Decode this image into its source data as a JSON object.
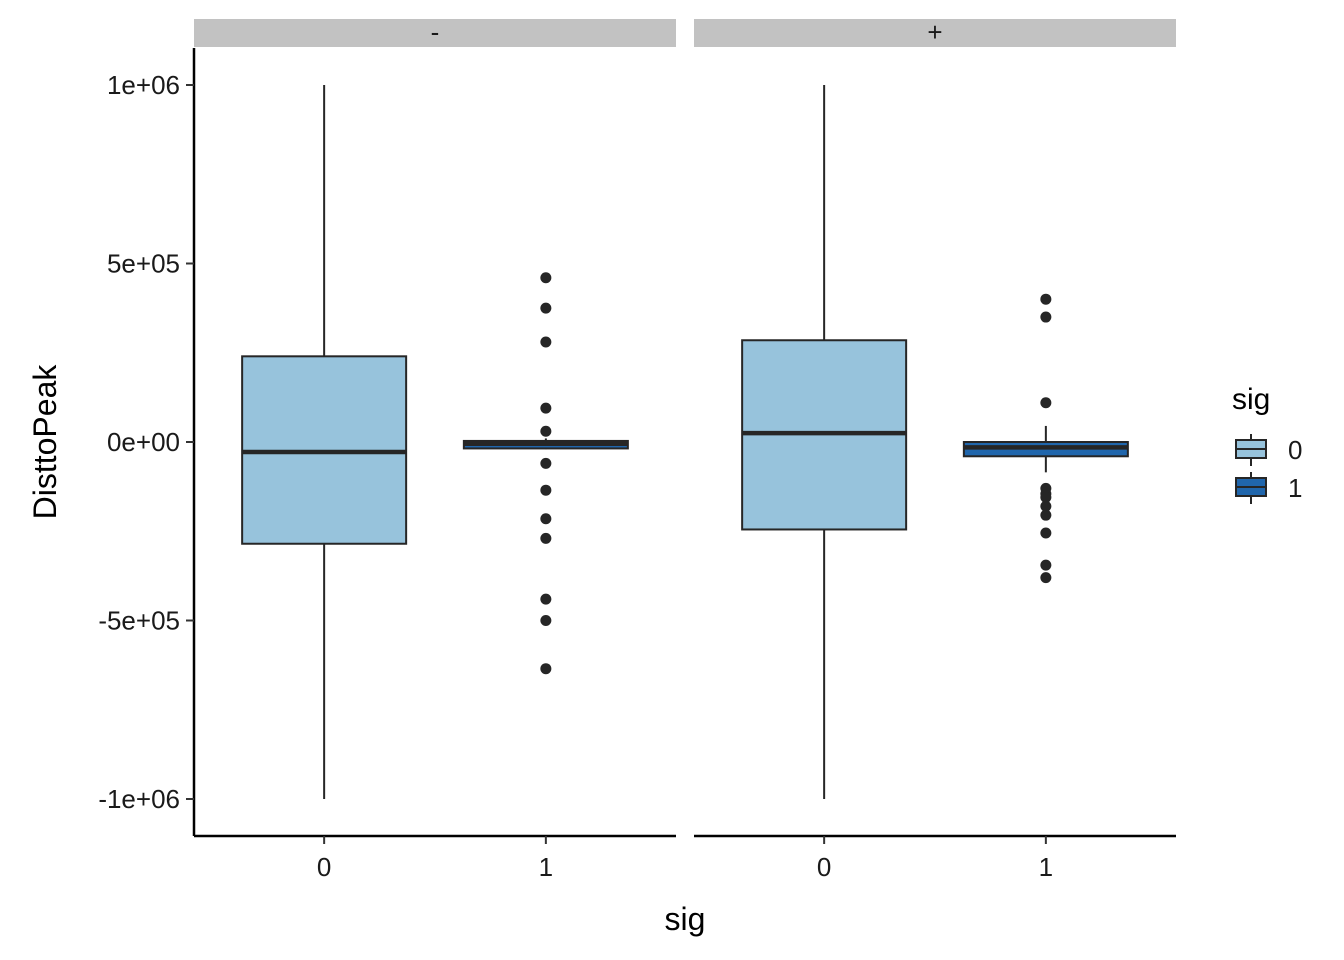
{
  "chart_data": {
    "type": "box",
    "xlabel": "sig",
    "ylabel": "DisttoPeak",
    "ylim": [
      -1100000,
      1100000
    ],
    "yticks": [
      {
        "value": 1000000,
        "label": "1e+06"
      },
      {
        "value": 500000,
        "label": "5e+05"
      },
      {
        "value": 0,
        "label": "0e+00"
      },
      {
        "value": -500000,
        "label": "-5e+05"
      },
      {
        "value": -1000000,
        "label": "-1e+06"
      }
    ],
    "categories": [
      "0",
      "1"
    ],
    "facets": [
      {
        "label": "-",
        "boxes": [
          {
            "category": "0",
            "whisker_low": -1000000,
            "q1": -285000,
            "median": -28000,
            "q3": 240000,
            "whisker_high": 1000000,
            "outliers": []
          },
          {
            "category": "1",
            "whisker_low": -20000,
            "q1": -18000,
            "median": -5000,
            "q3": 3000,
            "whisker_high": 10000,
            "outliers": [
              460000,
              375000,
              280000,
              95000,
              30000,
              -60000,
              -135000,
              -215000,
              -270000,
              -440000,
              -500000,
              -635000
            ]
          }
        ]
      },
      {
        "label": "+",
        "boxes": [
          {
            "category": "0",
            "whisker_low": -1000000,
            "q1": -245000,
            "median": 25000,
            "q3": 285000,
            "whisker_high": 1000000,
            "outliers": []
          },
          {
            "category": "1",
            "whisker_low": -85000,
            "q1": -40000,
            "median": -15000,
            "q3": 0,
            "whisker_high": 45000,
            "outliers": [
              400000,
              350000,
              110000,
              -130000,
              -145000,
              -155000,
              -180000,
              -205000,
              -255000,
              -345000,
              -380000
            ]
          }
        ]
      }
    ],
    "legend": {
      "title": "sig",
      "position": "right",
      "items": [
        {
          "label": "0",
          "color": "#97c3dc"
        },
        {
          "label": "1",
          "color": "#2066ac"
        }
      ]
    },
    "strip_color": "#c2c2c2",
    "line_color": "#262626"
  }
}
